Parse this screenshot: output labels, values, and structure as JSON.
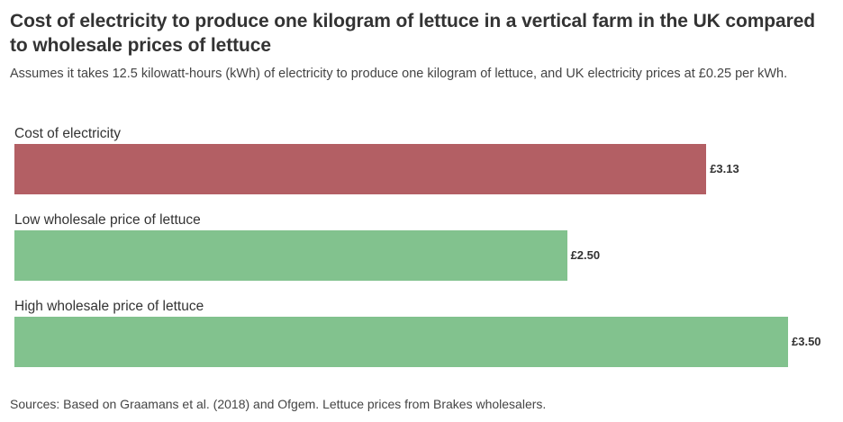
{
  "chart_data": {
    "type": "bar",
    "orientation": "horizontal",
    "title": "Cost of electricity to produce one kilogram of lettuce in a vertical farm in the UK compared to wholesale prices of lettuce",
    "subtitle": "Assumes it takes 12.5 kilowatt-hours (kWh) of electricity to produce one kilogram of lettuce, and UK electricity prices at £0.25 per kWh.",
    "categories": [
      "Cost of electricity",
      "Low wholesale price of lettuce",
      "High wholesale price of lettuce"
    ],
    "values": [
      3.13,
      2.5,
      3.5
    ],
    "value_labels": [
      "£3.13",
      "£2.50",
      "£3.50"
    ],
    "colors": [
      "#b35f64",
      "#82c28e",
      "#82c28e"
    ],
    "xlim": [
      0,
      3.5
    ],
    "grid": false,
    "source": "Sources: Based on Graamans et al. (2018) and Ofgem. Lettuce prices from Brakes wholesalers."
  }
}
